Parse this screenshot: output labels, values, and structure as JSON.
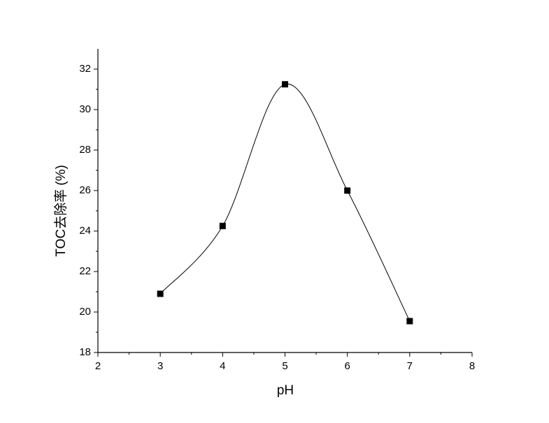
{
  "chart_data": {
    "type": "scatter",
    "smooth": true,
    "x_label": "pH",
    "y_label": "TOC去除率 (%)",
    "x": [
      3,
      4,
      5,
      6,
      7
    ],
    "values": [
      20.9,
      24.25,
      31.25,
      26.0,
      19.55
    ],
    "color": "#000000",
    "xlim": [
      2,
      8
    ],
    "xticks": [
      2,
      3,
      4,
      5,
      6,
      7,
      8
    ],
    "ylim": [
      18,
      33
    ],
    "yticks": [
      18,
      20,
      22,
      24,
      26,
      28,
      30,
      32
    ]
  }
}
